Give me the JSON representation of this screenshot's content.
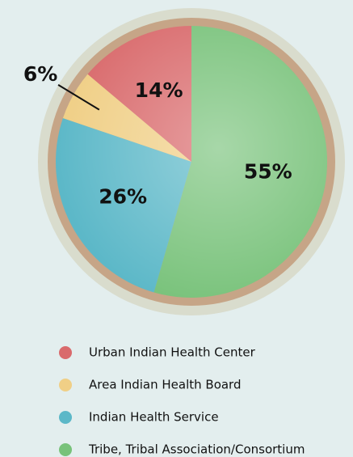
{
  "chart_data": {
    "type": "pie",
    "categories": [
      "Urban Indian Health Center",
      "Area Indian Health Board",
      "Indian Health Service",
      "Tribe, Tribal Association/Consortium"
    ],
    "values": [
      14,
      6,
      26,
      55
    ],
    "value_labels": [
      "14%",
      "6%",
      "26%",
      "55%"
    ],
    "colors": [
      "#d96a6c",
      "#f0cf86",
      "#5cb8c8",
      "#78c27a"
    ]
  }
}
